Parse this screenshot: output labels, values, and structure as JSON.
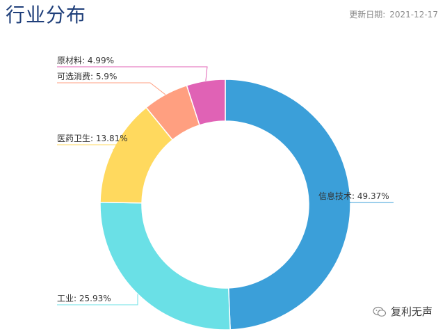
{
  "header": {
    "title": "行业分布",
    "update_label": "更新日期:",
    "update_date": "2021-12-17"
  },
  "watermark": {
    "text": "复利无声",
    "icon": "wechat-icon"
  },
  "chart_data": {
    "type": "pie",
    "variant": "donut",
    "title": "行业分布",
    "slices": [
      {
        "name": "信息技术",
        "value": 49.37,
        "label": "信息技术: 49.37%",
        "color": "#3b9fd9"
      },
      {
        "name": "工业",
        "value": 25.93,
        "label": "工业: 25.93%",
        "color": "#6ae0e6"
      },
      {
        "name": "医药卫生",
        "value": 13.81,
        "label": "医药卫生: 13.81%",
        "color": "#ffd95e"
      },
      {
        "name": "可选消费",
        "value": 5.9,
        "label": "可选消费: 5.9%",
        "color": "#ff9f80"
      },
      {
        "name": "原材料",
        "value": 4.99,
        "label": "原材料: 4.99%",
        "color": "#e062b5"
      }
    ],
    "legend": "none"
  }
}
